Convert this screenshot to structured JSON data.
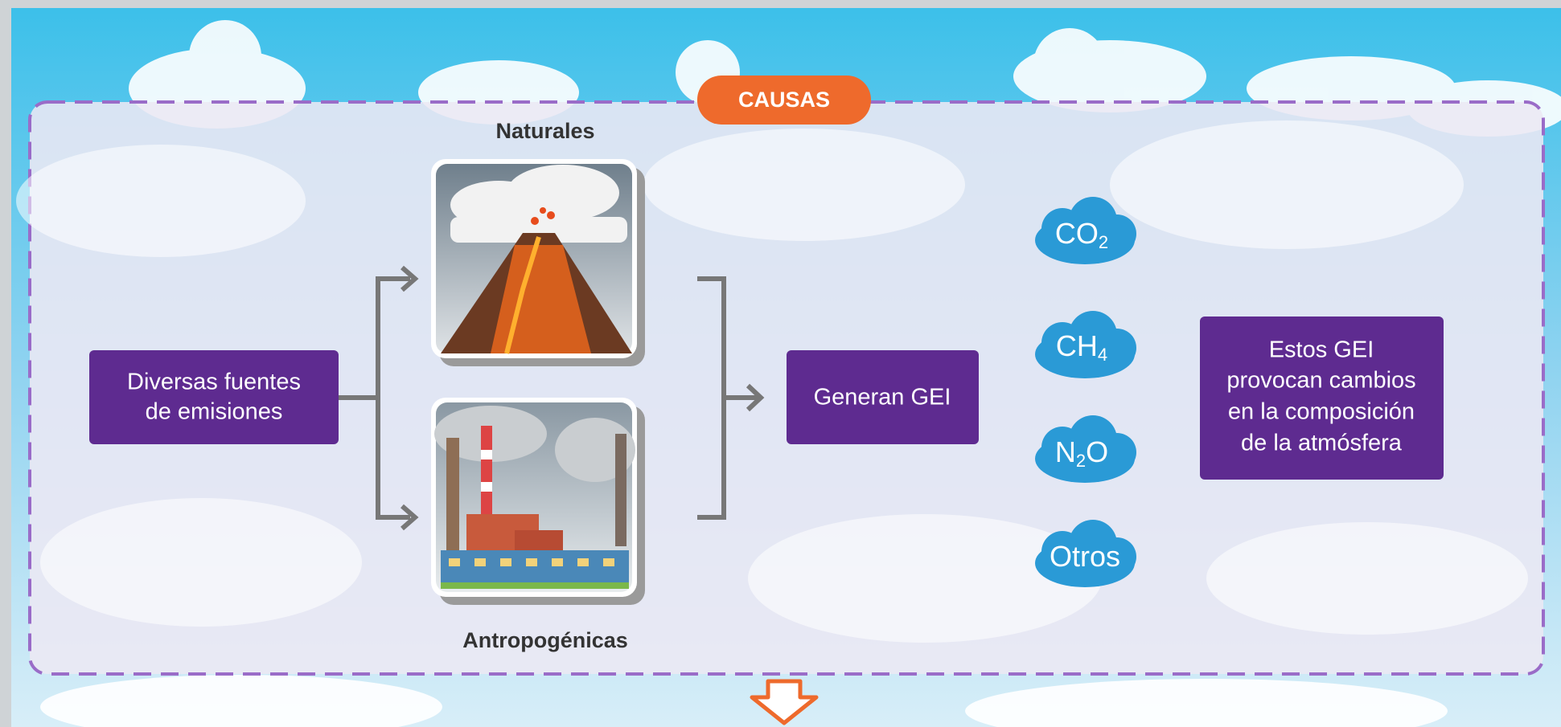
{
  "header": {
    "title": "CAUSAS"
  },
  "sources": {
    "lines": [
      "Diversas fuentes",
      "de emisiones"
    ]
  },
  "natural": {
    "label": "Naturales"
  },
  "anthropogenic": {
    "label": "Antropogénicas"
  },
  "result": {
    "label": "Generan GEI"
  },
  "gases": [
    {
      "base": "CO",
      "sub": "2"
    },
    {
      "base": "CH",
      "sub": "4"
    },
    {
      "base": "N",
      "sub": "2",
      "tail": "O"
    },
    {
      "base": "Otros"
    }
  ],
  "effect": {
    "lines": [
      "Estos GEI",
      "provocan cambios",
      "en la composición",
      "de la atmósfera"
    ]
  }
}
